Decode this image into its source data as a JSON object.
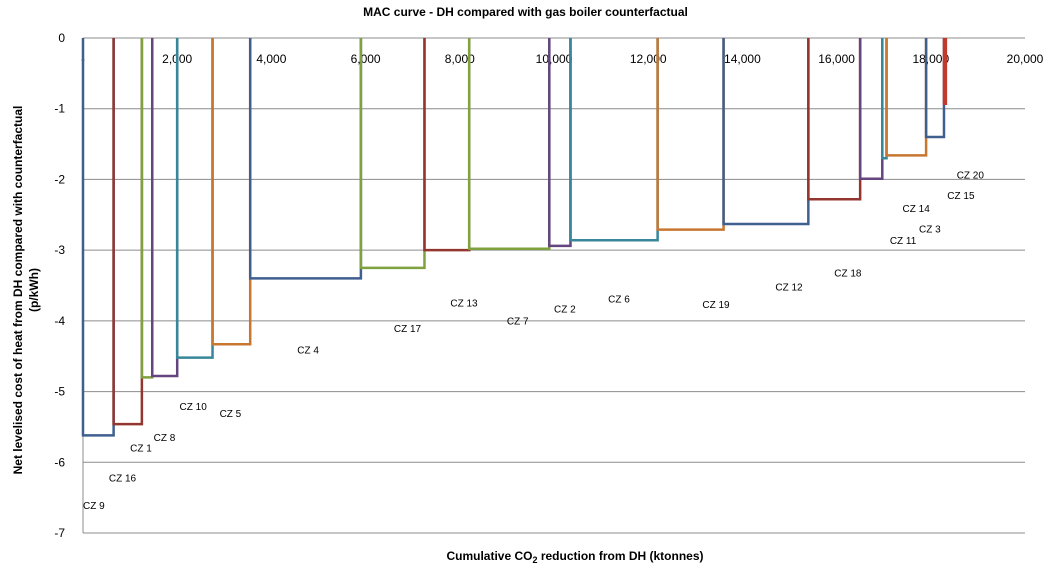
{
  "chart_data": {
    "type": "step",
    "title": "MAC curve - DH compared with gas boiler counterfactual",
    "xlabel_main": "Cumulative CO",
    "xlabel_sub": "2",
    "xlabel_tail": " reduction from DH (ktonnes)",
    "ylabel": "Net levelised cost of heat from DH compared with counterfactual (p/kWh)",
    "ylabel_line1": "Net levelised cost of heat from DH compared with counterfactual",
    "ylabel_line2": "(p/kWh)",
    "xlim": [
      0,
      20000
    ],
    "ylim": [
      -7,
      0
    ],
    "x_ticks": [
      0,
      2000,
      4000,
      6000,
      8000,
      10000,
      12000,
      14000,
      16000,
      18000,
      20000
    ],
    "x_tick_labels": [
      "-",
      "2,000",
      "4,000",
      "6,000",
      "8,000",
      "10,000",
      "12,000",
      "14,000",
      "16,000",
      "18,000",
      "20,000"
    ],
    "y_ticks": [
      0,
      -1,
      -2,
      -3,
      -4,
      -5,
      -6,
      -7
    ],
    "y_tick_labels": [
      "0",
      "-1",
      "-2",
      "-3",
      "-4",
      "-5",
      "-6",
      "-7"
    ],
    "grid": "horizontal",
    "series": [
      {
        "name": "CZ 9",
        "x0": 0,
        "x1": 650,
        "y": -5.62,
        "color": "#3f5f8f"
      },
      {
        "name": "CZ 16",
        "x0": 650,
        "x1": 1250,
        "y": -5.46,
        "color": "#943630"
      },
      {
        "name": "CZ 1",
        "x0": 1250,
        "x1": 1470,
        "y": -4.8,
        "color": "#7fa13e"
      },
      {
        "name": "CZ 8",
        "x0": 1470,
        "x1": 2000,
        "y": -4.78,
        "color": "#654580"
      },
      {
        "name": "CZ 10",
        "x0": 2000,
        "x1": 2750,
        "y": -4.52,
        "color": "#38869a"
      },
      {
        "name": "CZ 5",
        "x0": 2750,
        "x1": 3550,
        "y": -4.33,
        "color": "#c87731"
      },
      {
        "name": "CZ 4",
        "x0": 3550,
        "x1": 5900,
        "y": -3.4,
        "color": "#3f5f8f"
      },
      {
        "name": "CZ 17",
        "x0": 5900,
        "x1": 7250,
        "y": -3.25,
        "color": "#7fa13e"
      },
      {
        "name": "CZ 13",
        "x0": 7250,
        "x1": 8200,
        "y": -3.0,
        "color": "#943630"
      },
      {
        "name": "CZ 7",
        "x0": 8200,
        "x1": 9900,
        "y": -2.98,
        "color": "#7fa13e"
      },
      {
        "name": "CZ 2",
        "x0": 9900,
        "x1": 10350,
        "y": -2.94,
        "color": "#654580"
      },
      {
        "name": "CZ 6",
        "x0": 10350,
        "x1": 12200,
        "y": -2.86,
        "color": "#38869a"
      },
      {
        "name": "CZ 19",
        "x0": 12200,
        "x1": 13600,
        "y": -2.71,
        "color": "#c87731"
      },
      {
        "name": "CZ 12",
        "x0": 13600,
        "x1": 15400,
        "y": -2.63,
        "color": "#3f5f8f"
      },
      {
        "name": "CZ 18",
        "x0": 15400,
        "x1": 16500,
        "y": -2.28,
        "color": "#943630"
      },
      {
        "name": "CZ 14",
        "x0": 16500,
        "x1": 16970,
        "y": -1.99,
        "color": "#654580"
      },
      {
        "name": "CZ 11",
        "x0": 16970,
        "x1": 17060,
        "y": -1.7,
        "color": "#38869a"
      },
      {
        "name": "CZ 3",
        "x0": 17060,
        "x1": 17900,
        "y": -1.66,
        "color": "#c87731"
      },
      {
        "name": "CZ 15",
        "x0": 17900,
        "x1": 18280,
        "y": -1.4,
        "color": "#3f5f8f"
      },
      {
        "name": "CZ 20",
        "x0": 18280,
        "x1": 18320,
        "y": -0.93,
        "color": "#c0392b"
      }
    ],
    "labels": [
      {
        "text": "CZ 9",
        "x": 0,
        "y": -6.66
      },
      {
        "text": "CZ 16",
        "x": 550,
        "y": -6.27
      },
      {
        "text": "CZ 1",
        "x": 1000,
        "y": -5.85
      },
      {
        "text": "CZ 8",
        "x": 1500,
        "y": -5.7
      },
      {
        "text": "CZ 10",
        "x": 2050,
        "y": -5.26
      },
      {
        "text": "CZ 5",
        "x": 2900,
        "y": -5.36
      },
      {
        "text": "CZ 4",
        "x": 4550,
        "y": -4.46
      },
      {
        "text": "CZ 17",
        "x": 6600,
        "y": -4.16
      },
      {
        "text": "CZ 13",
        "x": 7800,
        "y": -3.8
      },
      {
        "text": "CZ 7",
        "x": 9000,
        "y": -4.05
      },
      {
        "text": "CZ 2",
        "x": 10000,
        "y": -3.88
      },
      {
        "text": "CZ 6",
        "x": 11150,
        "y": -3.74
      },
      {
        "text": "CZ 19",
        "x": 13150,
        "y": -3.82
      },
      {
        "text": "CZ 12",
        "x": 14700,
        "y": -3.57
      },
      {
        "text": "CZ 18",
        "x": 15950,
        "y": -3.37
      },
      {
        "text": "CZ 11",
        "x": 17130,
        "y": -2.91
      },
      {
        "text": "CZ 3",
        "x": 17750,
        "y": -2.75
      },
      {
        "text": "CZ 14",
        "x": 17400,
        "y": -2.46
      },
      {
        "text": "CZ 15",
        "x": 18350,
        "y": -2.28
      },
      {
        "text": "CZ 20",
        "x": 18550,
        "y": -1.99
      }
    ]
  }
}
